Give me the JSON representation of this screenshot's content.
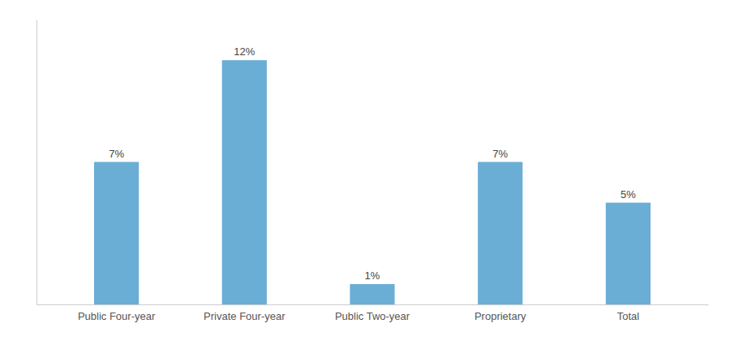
{
  "chart_data": {
    "type": "bar",
    "categories": [
      "Public Four-year",
      "Private Four-year",
      "Public Two-year",
      "Proprietary",
      "Total"
    ],
    "values": [
      7,
      12,
      1,
      7,
      5
    ],
    "value_labels": [
      "7%",
      "12%",
      "1%",
      "7%",
      "5%"
    ],
    "color": "#6aaed6",
    "ylim": [
      0,
      14
    ],
    "grid": false,
    "data_labels": true,
    "tick_labels": "x"
  }
}
